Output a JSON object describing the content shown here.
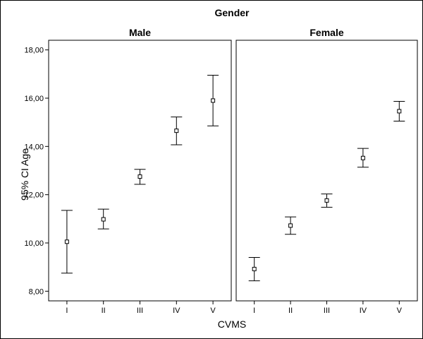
{
  "chart_data": {
    "type": "errorbar",
    "title": "Gender",
    "xlabel": "CVMS",
    "ylabel": "95% CI Age",
    "categories": [
      "I",
      "II",
      "III",
      "IV",
      "V"
    ],
    "ylim": [
      7.6,
      18.4
    ],
    "yticks": [
      8,
      10,
      12,
      14,
      16,
      18
    ],
    "ytick_labels": [
      "8,00",
      "10,00",
      "12,00",
      "14,00",
      "16,00",
      "18,00"
    ],
    "panels": [
      {
        "name": "Male",
        "mean": [
          10.05,
          10.98,
          12.75,
          14.65,
          15.9
        ],
        "lower": [
          8.75,
          10.58,
          12.43,
          14.07,
          14.85
        ],
        "upper": [
          11.35,
          11.4,
          13.05,
          15.22,
          16.95
        ]
      },
      {
        "name": "Female",
        "mean": [
          8.92,
          10.72,
          11.76,
          13.52,
          15.46
        ],
        "lower": [
          8.43,
          10.36,
          11.48,
          13.14,
          15.05
        ],
        "upper": [
          9.4,
          11.08,
          12.03,
          13.92,
          15.87
        ]
      }
    ]
  }
}
